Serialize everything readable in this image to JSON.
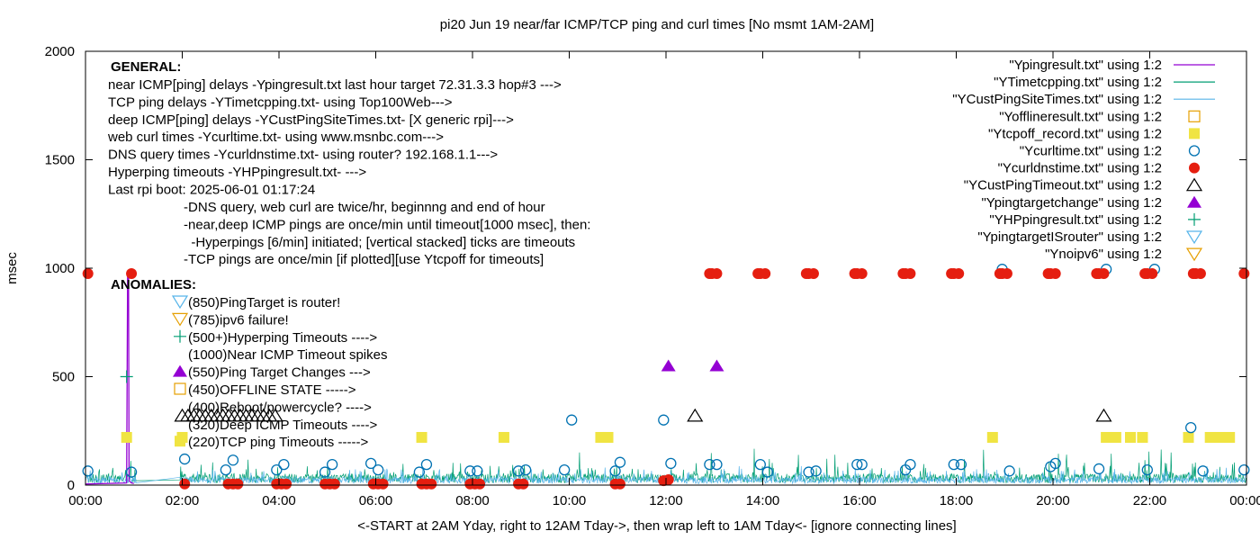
{
  "chart_data": {
    "type": "scatter",
    "title": "pi20 Jun 19  near/far ICMP/TCP ping and curl times [No msmt 1AM-2AM]",
    "xlabel": "<-START at 2AM Yday, right to 12AM Tday->, then wrap left to 1AM Tday<- [ignore connecting lines]",
    "ylabel": "msec",
    "xlim": [
      0,
      24
    ],
    "ylim": [
      0,
      2000
    ],
    "x_ticks": [
      "00:00",
      "02:00",
      "04:00",
      "06:00",
      "08:00",
      "10:00",
      "12:00",
      "14:00",
      "16:00",
      "18:00",
      "20:00",
      "22:00",
      "00:00"
    ],
    "y_ticks": [
      "0",
      "500",
      "1000",
      "1500",
      "2000"
    ],
    "grid": false,
    "legend_position": "top-right",
    "series": [
      {
        "name": "\"Ypingresult.txt\" using 1:2",
        "style": "line",
        "color": "#9400d3",
        "points": [
          [
            0.0,
            5
          ],
          [
            0.5,
            8
          ],
          [
            0.85,
            10
          ],
          [
            0.87,
            980
          ],
          [
            0.89,
            980
          ],
          [
            0.9,
            20
          ],
          [
            0.95,
            10
          ],
          [
            1.0,
            8
          ]
        ]
      },
      {
        "name": "\"YTimetcpping.txt\" using 1:2",
        "style": "noise",
        "color": "#009e73",
        "base": 35,
        "amp": 70,
        "spike": 170
      },
      {
        "name": "\"YCustPingSiteTimes.txt\" using 1:2",
        "style": "noise",
        "color": "#56b4e9",
        "base": 25,
        "amp": 45,
        "spike": 90
      },
      {
        "name": "\"Yofflineresult.txt\" using 1:2",
        "style": "open-square",
        "color": "#e69f00",
        "points": []
      },
      {
        "name": "\"Ytcpoff_record.txt\" using 1:2",
        "style": "filled-square",
        "color": "#f0e442",
        "points": [
          [
            0.85,
            220
          ],
          [
            2.0,
            220
          ],
          [
            6.95,
            220
          ],
          [
            8.65,
            220
          ],
          [
            10.65,
            220
          ],
          [
            10.8,
            220
          ],
          [
            18.75,
            220
          ],
          [
            21.1,
            220
          ],
          [
            21.3,
            220
          ],
          [
            21.6,
            220
          ],
          [
            21.85,
            220
          ],
          [
            22.8,
            220
          ],
          [
            23.25,
            220
          ],
          [
            23.45,
            220
          ],
          [
            23.65,
            220
          ]
        ]
      },
      {
        "name": "\"Ycurltime.txt\" using 1:2",
        "style": "open-circle",
        "color": "#0072b2",
        "points": [
          [
            0.05,
            65
          ],
          [
            0.95,
            60
          ],
          [
            2.05,
            120
          ],
          [
            2.9,
            70
          ],
          [
            3.05,
            115
          ],
          [
            3.95,
            70
          ],
          [
            4.1,
            95
          ],
          [
            4.95,
            60
          ],
          [
            5.1,
            95
          ],
          [
            5.9,
            100
          ],
          [
            6.05,
            70
          ],
          [
            6.9,
            60
          ],
          [
            7.05,
            95
          ],
          [
            7.95,
            65
          ],
          [
            8.1,
            65
          ],
          [
            8.95,
            65
          ],
          [
            9.1,
            70
          ],
          [
            9.9,
            70
          ],
          [
            10.05,
            300
          ],
          [
            10.95,
            65
          ],
          [
            11.05,
            105
          ],
          [
            11.95,
            300
          ],
          [
            12.1,
            100
          ],
          [
            12.9,
            95
          ],
          [
            13.05,
            95
          ],
          [
            13.95,
            95
          ],
          [
            14.1,
            60
          ],
          [
            14.95,
            60
          ],
          [
            15.1,
            65
          ],
          [
            15.95,
            95
          ],
          [
            16.05,
            95
          ],
          [
            16.95,
            70
          ],
          [
            17.05,
            95
          ],
          [
            17.95,
            95
          ],
          [
            18.1,
            95
          ],
          [
            18.95,
            995
          ],
          [
            19.1,
            65
          ],
          [
            19.95,
            85
          ],
          [
            20.05,
            100
          ],
          [
            20.95,
            75
          ],
          [
            21.1,
            995
          ],
          [
            21.95,
            70
          ],
          [
            22.1,
            995
          ],
          [
            22.85,
            265
          ],
          [
            23.1,
            65
          ],
          [
            23.95,
            70
          ]
        ]
      },
      {
        "name": "\"Ycurldnstime.txt\" using 1:2",
        "style": "filled-circle",
        "color": "#e51e10",
        "points": [
          [
            0.05,
            975
          ],
          [
            0.95,
            975
          ],
          [
            2.05,
            5
          ],
          [
            2.95,
            5
          ],
          [
            3.05,
            5
          ],
          [
            3.15,
            5
          ],
          [
            3.95,
            5
          ],
          [
            4.05,
            5
          ],
          [
            4.15,
            5
          ],
          [
            4.95,
            5
          ],
          [
            5.05,
            5
          ],
          [
            5.15,
            5
          ],
          [
            5.95,
            5
          ],
          [
            6.05,
            5
          ],
          [
            6.15,
            5
          ],
          [
            6.95,
            5
          ],
          [
            7.05,
            5
          ],
          [
            7.15,
            5
          ],
          [
            7.95,
            5
          ],
          [
            8.05,
            5
          ],
          [
            8.15,
            5
          ],
          [
            8.95,
            5
          ],
          [
            9.05,
            5
          ],
          [
            10.95,
            5
          ],
          [
            11.05,
            5
          ],
          [
            11.95,
            20
          ],
          [
            12.05,
            25
          ],
          [
            12.9,
            975
          ],
          [
            12.95,
            975
          ],
          [
            13.05,
            975
          ],
          [
            13.9,
            975
          ],
          [
            13.95,
            975
          ],
          [
            14.05,
            975
          ],
          [
            14.9,
            975
          ],
          [
            14.95,
            975
          ],
          [
            15.05,
            975
          ],
          [
            15.9,
            975
          ],
          [
            15.95,
            975
          ],
          [
            16.05,
            975
          ],
          [
            16.9,
            975
          ],
          [
            16.95,
            975
          ],
          [
            17.05,
            975
          ],
          [
            17.9,
            975
          ],
          [
            17.95,
            975
          ],
          [
            18.05,
            975
          ],
          [
            18.9,
            975
          ],
          [
            18.95,
            975
          ],
          [
            19.05,
            975
          ],
          [
            19.9,
            975
          ],
          [
            19.95,
            975
          ],
          [
            20.05,
            975
          ],
          [
            20.9,
            975
          ],
          [
            20.95,
            975
          ],
          [
            21.05,
            975
          ],
          [
            21.9,
            975
          ],
          [
            21.95,
            975
          ],
          [
            22.05,
            975
          ],
          [
            22.9,
            975
          ],
          [
            22.95,
            975
          ],
          [
            23.05,
            975
          ],
          [
            23.95,
            975
          ]
        ]
      },
      {
        "name": "\"YCustPingTimeout.txt\" using 1:2",
        "style": "open-triangle",
        "color": "#000000",
        "points": [
          [
            2.0,
            320
          ],
          [
            2.12,
            320
          ],
          [
            2.24,
            320
          ],
          [
            2.36,
            320
          ],
          [
            2.48,
            320
          ],
          [
            2.6,
            320
          ],
          [
            2.72,
            320
          ],
          [
            2.84,
            320
          ],
          [
            2.96,
            320
          ],
          [
            3.08,
            320
          ],
          [
            3.2,
            320
          ],
          [
            3.32,
            320
          ],
          [
            3.44,
            320
          ],
          [
            3.56,
            320
          ],
          [
            3.68,
            320
          ],
          [
            3.8,
            320
          ],
          [
            3.92,
            320
          ],
          [
            12.6,
            320
          ],
          [
            21.05,
            320
          ]
        ]
      },
      {
        "name": "\"Ypingtargetchange\" using 1:2",
        "style": "filled-triangle",
        "color": "#9400d3",
        "points": [
          [
            12.05,
            550
          ],
          [
            13.05,
            550
          ]
        ]
      },
      {
        "name": "\"YHPpingresult.txt\" using 1:2",
        "style": "plus",
        "color": "#009e73",
        "points": [
          [
            0.85,
            500
          ]
        ]
      },
      {
        "name": "\"YpingtargetISrouter\" using 1:2",
        "style": "open-down-triangle",
        "color": "#56b4e9",
        "points": []
      },
      {
        "name": "\"Ynoipv6\" using 1:2",
        "style": "open-down-triangle",
        "color": "#e69f00",
        "points": []
      }
    ],
    "annotations": {
      "general_heading": "GENERAL:",
      "general_lines": [
        "near ICMP[ping] delays -Ypingresult.txt last hour target 72.31.3.3 hop#3 --->",
        "TCP ping delays -YTimetcpping.txt- using Top100Web--->",
        "deep ICMP[ping] delays -YCustPingSiteTimes.txt- [X generic rpi]--->",
        "web curl times -Ycurltime.txt- using www.msnbc.com--->",
        "DNS query times -Ycurldnstime.txt- using router? 192.168.1.1--->",
        "Hyperping timeouts -YHPpingresult.txt- --->",
        "Last rpi boot: 2025-06-01 01:17:24"
      ],
      "note_lines": [
        "-DNS query, web curl are twice/hr, beginnng and end of hour",
        "-near,deep ICMP pings are once/min until timeout[1000 msec], then:",
        "  -Hyperpings [6/min] initiated; [vertical stacked] ticks are timeouts",
        "-TCP pings are once/min [if plotted][use Ytcpoff for timeouts]"
      ],
      "anomalies_heading": "ANOMALIES:",
      "anomaly_lines": [
        {
          "text": "(850)PingTarget is router!",
          "marker": "open-down-triangle",
          "color": "#56b4e9"
        },
        {
          "text": "(785)ipv6 failure!",
          "marker": "open-down-triangle",
          "color": "#e69f00"
        },
        {
          "text": "(500+)Hyperping Timeouts ---->",
          "marker": "plus",
          "color": "#009e73"
        },
        {
          "text": "(1000)Near ICMP Timeout spikes",
          "marker": "none",
          "color": "#000000"
        },
        {
          "text": "(550)Ping Target Changes --->",
          "marker": "filled-triangle",
          "color": "#9400d3"
        },
        {
          "text": "(450)OFFLINE STATE ----->",
          "marker": "open-square",
          "color": "#e69f00"
        },
        {
          "text": "(400)Reboot/powercycle? ---->",
          "marker": "none",
          "color": "#000000"
        },
        {
          "text": "(320)Deep ICMP Timeouts ---->",
          "marker": "none",
          "color": "#000000"
        },
        {
          "text": "(220)TCP ping Timeouts ----->",
          "marker": "filled-square",
          "color": "#f0e442"
        }
      ]
    }
  }
}
